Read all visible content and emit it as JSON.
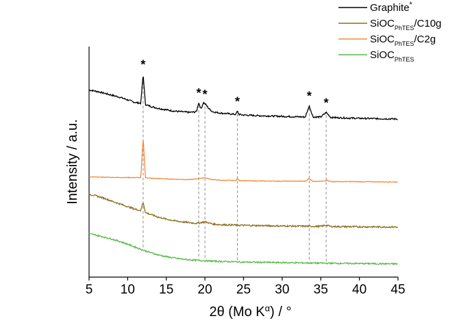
{
  "chart_data": {
    "type": "line",
    "xlabel_main": "2θ (Mo K",
    "xlabel_sup": "α",
    "xlabel_tail": ") / °",
    "ylabel": "Intensity / a.u.",
    "xlim": [
      5,
      45
    ],
    "xticks": [
      5,
      10,
      15,
      20,
      25,
      30,
      35,
      40,
      45
    ],
    "y_axis_ticks": false,
    "grid": false,
    "legend_position": "top-right",
    "legend": [
      {
        "series": "graphite",
        "main": "Graphite",
        "sup": "*",
        "sub": "",
        "tail": ""
      },
      {
        "series": "c10g",
        "main": "SiOC",
        "sup": "",
        "sub": "PhTES",
        "tail": "/C10g"
      },
      {
        "series": "c2g",
        "main": "SiOC",
        "sup": "",
        "sub": "PhTES",
        "tail": "/C2g"
      },
      {
        "series": "sioc",
        "main": "SiOC",
        "sup": "",
        "sub": "PhTES",
        "tail": ""
      }
    ],
    "peak_marker": "*",
    "peaks": [
      12.0,
      19.2,
      20.0,
      24.2,
      33.5,
      35.7
    ],
    "series": [
      {
        "key": "graphite",
        "color": "#000000",
        "x": [
          5,
          6,
          7,
          8,
          9,
          10,
          11,
          11.7,
          12.0,
          12.3,
          13,
          14,
          15,
          16,
          17,
          18,
          18.9,
          19.2,
          19.5,
          19.8,
          20.1,
          20.5,
          21,
          22,
          23,
          24,
          24.2,
          24.4,
          25,
          27,
          30,
          33,
          33.5,
          34,
          35,
          35.7,
          36.3,
          38,
          40,
          42,
          45
        ],
        "y": [
          1.72,
          1.71,
          1.695,
          1.68,
          1.665,
          1.645,
          1.625,
          1.62,
          1.84,
          1.61,
          1.595,
          1.58,
          1.57,
          1.56,
          1.555,
          1.55,
          1.555,
          1.625,
          1.575,
          1.625,
          1.61,
          1.58,
          1.555,
          1.545,
          1.54,
          1.535,
          1.56,
          1.535,
          1.53,
          1.525,
          1.52,
          1.515,
          1.6,
          1.515,
          1.515,
          1.55,
          1.512,
          1.508,
          1.505,
          1.503,
          1.5
        ]
      },
      {
        "key": "c2g",
        "color": "#f28a3c",
        "x": [
          5,
          8,
          11,
          11.7,
          12.0,
          12.3,
          13,
          15,
          18,
          19.2,
          20.0,
          20.7,
          22,
          24,
          24.2,
          24.4,
          26,
          30,
          33,
          33.5,
          34,
          35.5,
          35.8,
          36.2,
          40,
          45
        ],
        "y": [
          1.06,
          1.057,
          1.055,
          1.055,
          1.36,
          1.055,
          1.05,
          1.045,
          1.04,
          1.047,
          1.055,
          1.042,
          1.035,
          1.033,
          1.05,
          1.033,
          1.03,
          1.028,
          1.028,
          1.048,
          1.027,
          1.028,
          1.035,
          1.025,
          1.024,
          1.022
        ]
      },
      {
        "key": "c10g",
        "color": "#8a6d1c",
        "x": [
          5,
          6,
          7,
          8,
          9,
          10,
          11,
          11.7,
          12.0,
          12.3,
          13,
          14,
          15,
          16,
          17,
          18,
          19,
          20,
          21,
          22,
          25,
          30,
          35,
          35.7,
          36.3,
          40,
          45
        ],
        "y": [
          0.93,
          0.915,
          0.898,
          0.875,
          0.855,
          0.835,
          0.815,
          0.805,
          0.87,
          0.79,
          0.775,
          0.755,
          0.74,
          0.728,
          0.72,
          0.713,
          0.708,
          0.72,
          0.703,
          0.698,
          0.693,
          0.688,
          0.685,
          0.695,
          0.684,
          0.682,
          0.68
        ]
      },
      {
        "key": "sioc",
        "color": "#58b947",
        "x": [
          5,
          6,
          7,
          8,
          9,
          10,
          11,
          12,
          13,
          14,
          15,
          16,
          17,
          18,
          19,
          20,
          22,
          25,
          30,
          35,
          40,
          45
        ],
        "y": [
          0.63,
          0.617,
          0.603,
          0.588,
          0.57,
          0.55,
          0.527,
          0.505,
          0.485,
          0.468,
          0.455,
          0.445,
          0.437,
          0.431,
          0.427,
          0.424,
          0.419,
          0.414,
          0.41,
          0.406,
          0.403,
          0.4
        ]
      }
    ]
  }
}
